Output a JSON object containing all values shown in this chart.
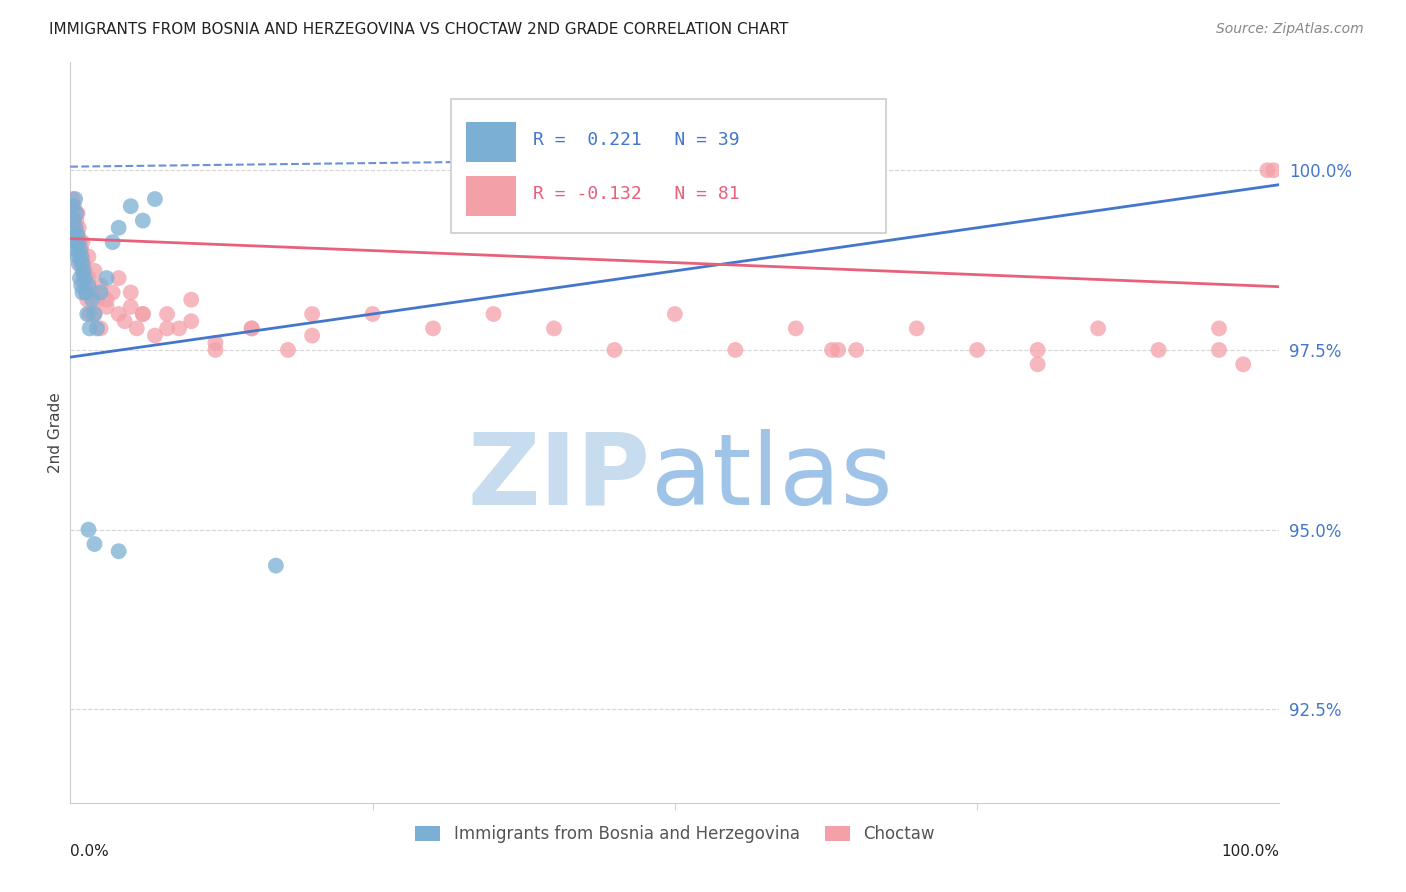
{
  "title": "IMMIGRANTS FROM BOSNIA AND HERZEGOVINA VS CHOCTAW 2ND GRADE CORRELATION CHART",
  "source": "Source: ZipAtlas.com",
  "ylabel": "2nd Grade",
  "yticks": [
    92.5,
    95.0,
    97.5,
    100.0
  ],
  "ytick_labels": [
    "92.5%",
    "95.0%",
    "97.5%",
    "100.0%"
  ],
  "xlim": [
    0.0,
    100.0
  ],
  "ylim": [
    91.2,
    101.5
  ],
  "blue_R": 0.221,
  "blue_N": 39,
  "pink_R": -0.132,
  "pink_N": 81,
  "blue_color": "#7BAFD4",
  "pink_color": "#F4A0A8",
  "blue_line_color": "#4477CC",
  "pink_line_color": "#E8607A",
  "legend_blue_label": "Immigrants from Bosnia and Herzegovina",
  "legend_pink_label": "Choctaw",
  "blue_x": [
    0.2,
    0.3,
    0.4,
    0.4,
    0.5,
    0.5,
    0.6,
    0.6,
    0.7,
    0.7,
    0.8,
    0.8,
    0.9,
    0.9,
    1.0,
    1.0,
    1.1,
    1.2,
    1.3,
    1.4,
    1.5,
    1.6,
    1.8,
    2.0,
    2.2,
    2.5,
    3.0,
    3.5,
    4.0,
    5.0,
    6.0,
    7.0,
    1.5,
    2.0,
    17.0,
    4.0,
    0.3,
    0.5,
    0.4
  ],
  "blue_y": [
    99.5,
    99.3,
    99.6,
    99.2,
    99.4,
    99.0,
    99.1,
    98.8,
    99.0,
    98.7,
    98.9,
    98.5,
    98.8,
    98.4,
    98.7,
    98.3,
    98.6,
    98.5,
    98.3,
    98.0,
    98.4,
    97.8,
    98.2,
    98.0,
    97.8,
    98.3,
    98.5,
    99.0,
    99.2,
    99.5,
    99.3,
    99.6,
    95.0,
    94.8,
    94.5,
    94.7,
    99.1,
    99.0,
    98.9
  ],
  "pink_x": [
    0.1,
    0.2,
    0.3,
    0.3,
    0.4,
    0.4,
    0.5,
    0.5,
    0.6,
    0.6,
    0.7,
    0.7,
    0.8,
    0.8,
    0.9,
    0.9,
    1.0,
    1.0,
    1.1,
    1.1,
    1.2,
    1.2,
    1.3,
    1.4,
    1.5,
    1.6,
    1.8,
    2.0,
    2.2,
    2.5,
    3.0,
    3.5,
    4.0,
    4.5,
    5.0,
    5.5,
    6.0,
    7.0,
    8.0,
    9.0,
    10.0,
    12.0,
    15.0,
    18.0,
    20.0,
    25.0,
    30.0,
    35.0,
    40.0,
    45.0,
    50.0,
    55.0,
    60.0,
    65.0,
    70.0,
    75.0,
    80.0,
    85.0,
    90.0,
    95.0,
    3.0,
    4.0,
    5.0,
    6.0,
    8.0,
    10.0,
    12.0,
    15.0,
    20.0,
    99.0,
    99.5,
    63.0,
    63.5,
    80.0,
    95.0,
    97.0,
    0.5,
    1.0,
    1.5,
    2.0,
    2.5
  ],
  "pink_y": [
    99.4,
    99.6,
    99.3,
    99.5,
    99.2,
    99.4,
    99.0,
    99.3,
    99.1,
    99.4,
    98.9,
    99.2,
    98.8,
    99.0,
    98.7,
    98.9,
    98.6,
    98.8,
    98.5,
    98.7,
    98.4,
    98.6,
    98.3,
    98.2,
    98.5,
    98.0,
    98.3,
    98.0,
    98.2,
    97.8,
    98.1,
    98.3,
    98.0,
    97.9,
    98.1,
    97.8,
    98.0,
    97.7,
    98.0,
    97.8,
    97.9,
    97.6,
    97.8,
    97.5,
    97.7,
    98.0,
    97.8,
    98.0,
    97.8,
    97.5,
    98.0,
    97.5,
    97.8,
    97.5,
    97.8,
    97.5,
    97.5,
    97.8,
    97.5,
    97.8,
    98.2,
    98.5,
    98.3,
    98.0,
    97.8,
    98.2,
    97.5,
    97.8,
    98.0,
    100.0,
    100.0,
    97.5,
    97.5,
    97.3,
    97.5,
    97.3,
    99.2,
    99.0,
    98.8,
    98.6,
    98.4
  ]
}
